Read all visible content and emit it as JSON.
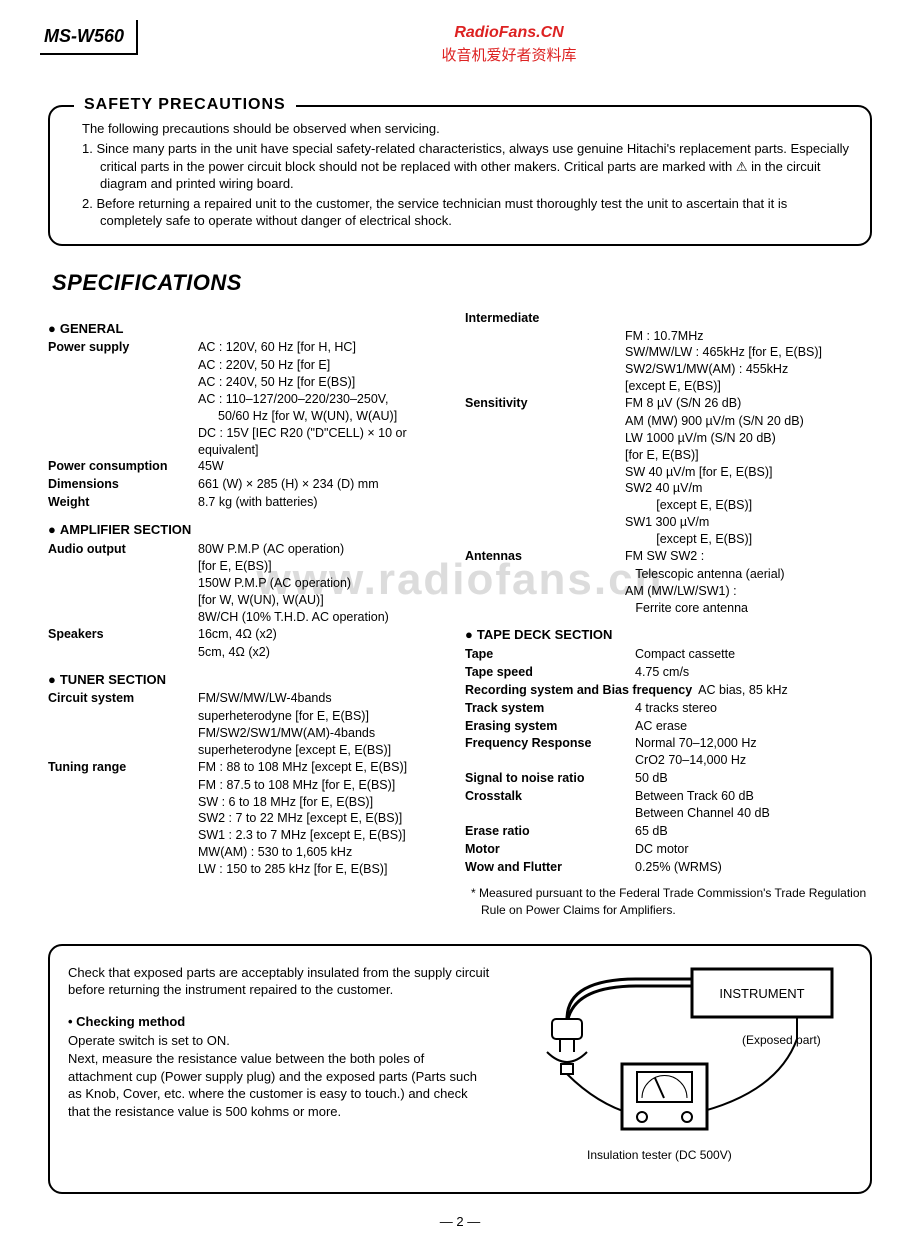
{
  "header": {
    "model": "MS-W560",
    "watermark_en": "RadioFans.CN",
    "watermark_cn": "收音机爱好者资料库"
  },
  "safety": {
    "title": "SAFETY  PRECAUTIONS",
    "intro": "The following precautions should be observed when servicing.",
    "items": [
      "1. Since many parts in the unit have special safety-related characteristics, always use genuine Hitachi's replacement parts. Especially critical parts in the power circuit block should not be replaced with other makers. Critical parts are marked with ⚠ in the circuit diagram and printed wiring board.",
      "2. Before returning a repaired unit to the customer, the service technician must thoroughly test the unit to ascertain that it is completely safe to operate without danger of electrical shock."
    ]
  },
  "spec_title": "SPECIFICATIONS",
  "general": {
    "title": "GENERAL",
    "power_supply_label": "Power supply",
    "power_supply": [
      "AC : 120V,  60 Hz   [for H, HC]",
      "AC : 220V,  50 Hz   [for E]",
      "AC : 240V,  50 Hz   [for E(BS)]",
      "AC : 110–127/200–220/230–250V,",
      "50/60 Hz  [for W, W(UN), W(AU)]",
      "DC : 15V [IEC R20 (\"D\"CELL) × 10 or equivalent]"
    ],
    "power_consumption_label": "Power consumption",
    "power_consumption": "45W",
    "dimensions_label": "Dimensions",
    "dimensions": "661 (W) × 285 (H) × 234 (D) mm",
    "weight_label": "Weight",
    "weight": "8.7 kg (with batteries)"
  },
  "amplifier": {
    "title": "AMPLIFIER  SECTION",
    "audio_output_label": "Audio output",
    "audio_output": [
      "80W P.M.P (AC operation)",
      "[for E, E(BS)]",
      "150W P.M.P (AC operation)",
      "[for W, W(UN), W(AU)]",
      "8W/CH (10% T.H.D. AC operation)"
    ],
    "speakers_label": "Speakers",
    "speakers": [
      "16cm, 4Ω (x2)",
      "5cm, 4Ω (x2)"
    ]
  },
  "tuner": {
    "title": "TUNER  SECTION",
    "circuit_label": "Circuit system",
    "circuit": [
      "FM/SW/MW/LW-4bands",
      "superheterodyne [for E, E(BS)]",
      "FM/SW2/SW1/MW(AM)-4bands",
      "superheterodyne [except E, E(BS)]"
    ],
    "tuning_label": "Tuning range",
    "tuning": [
      "FM : 88 to 108 MHz [except E, E(BS)]",
      "FM : 87.5 to 108 MHz [for E, E(BS)]",
      "SW : 6 to 18 MHz [for E, E(BS)]",
      "SW2 : 7 to 22 MHz [except E, E(BS)]",
      "SW1 : 2.3 to 7 MHz [except E, E(BS)]",
      "MW(AM) : 530 to 1,605 kHz",
      "LW : 150 to 285 kHz [for E, E(BS)]"
    ]
  },
  "right": {
    "intermediate_label": "Intermediate",
    "intermediate": [
      "FM : 10.7MHz",
      "SW/MW/LW : 465kHz [for E, E(BS)]",
      "SW2/SW1/MW(AM) : 455kHz",
      "[except E, E(BS)]"
    ],
    "sensitivity_label": "Sensitivity",
    "sensitivity": [
      "FM   8 µV (S/N 26 dB)",
      "AM (MW)   900 µV/m (S/N 20 dB)",
      "LW   1000 µV/m (S/N 20 dB)",
      "[for E, E(BS)]",
      "SW    40 µV/m [for E, E(BS)]",
      "SW2   40 µV/m",
      "         [except E, E(BS)]",
      "SW1   300 µV/m",
      "         [except E, E(BS)]"
    ],
    "antennas_label": "Antennas",
    "antennas": [
      "FM SW SW2 :",
      "   Telescopic antenna (aerial)",
      "AM (MW/LW/SW1) :",
      "   Ferrite core antenna"
    ]
  },
  "tape": {
    "title": "TAPE  DECK  SECTION",
    "rows": [
      [
        "Tape",
        "Compact cassette"
      ],
      [
        "Tape speed",
        "4.75 cm/s"
      ],
      [
        "Recording system and Bias frequency",
        "AC bias, 85 kHz"
      ],
      [
        "Track system",
        "4 tracks stereo"
      ],
      [
        "Erasing system",
        "AC erase"
      ],
      [
        "Frequency Response",
        "Normal 70–12,000 Hz\nCrO2 70–14,000 Hz"
      ],
      [
        "Signal to noise ratio",
        "50 dB"
      ],
      [
        "Crosstalk",
        "Between Track   60 dB\nBetween Channel   40 dB"
      ],
      [
        "Erase ratio",
        "65 dB"
      ],
      [
        "Motor",
        "DC motor"
      ],
      [
        "Wow and Flutter",
        "0.25% (WRMS)"
      ]
    ]
  },
  "footnote": "* Measured pursuant to the Federal Trade Commission's Trade Regulation Rule on Power Claims for Amplifiers.",
  "bottom": {
    "p1": "Check that exposed parts are acceptably insulated from the supply circuit before returning the instrument repaired to the customer.",
    "check_head": "•  Checking  method",
    "p2": "Operate switch is set to ON.",
    "p3": "Next, measure the resistance value between the both poles of attachment cup (Power supply plug) and the exposed parts (Parts such as Knob, Cover, etc. where the customer is easy to touch.) and check that the resistance value is 500 kohms or more.",
    "diagram": {
      "instrument_label": "INSTRUMENT",
      "exposed_label": "(Exposed part)",
      "tester_label": "Insulation tester (DC 500V)"
    }
  },
  "watermark_center": "www.radiofans.cn",
  "page_num": "— 2 —"
}
